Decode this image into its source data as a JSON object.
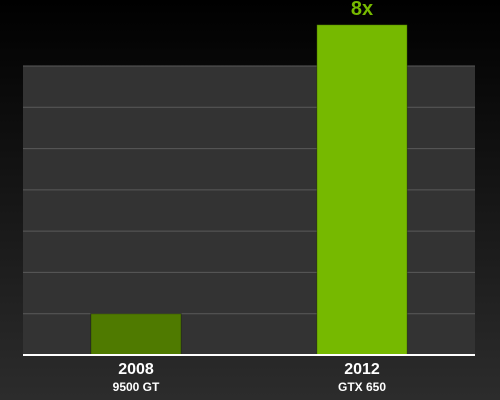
{
  "chart_data": {
    "type": "bar",
    "categories": [
      "2008",
      "2012"
    ],
    "sublabels": [
      "9500 GT",
      "GTX 650"
    ],
    "values": [
      1,
      8
    ],
    "value_labels": [
      null,
      "8x"
    ],
    "colors": [
      "#4f7a00",
      "#76b900"
    ],
    "ylim": [
      0,
      7
    ],
    "yticks": [
      0,
      1,
      2,
      3,
      4,
      5,
      6,
      7
    ],
    "grid": true
  }
}
